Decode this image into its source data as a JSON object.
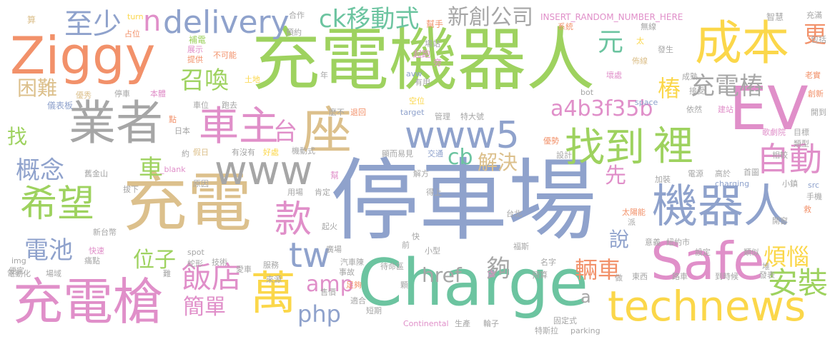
{
  "palette": {
    "green": "#9ed25f",
    "blue": "#8fa2cc",
    "orange": "#f2916a",
    "pink": "#e08fc9",
    "tan": "#dcc08c",
    "yellow": "#fbd74a",
    "teal": "#6cc4a0",
    "gray": "#a6a6a6"
  },
  "words": {
    "chongdian_jiqiren": "充電機器人",
    "tingchechang": "停車場",
    "chongdian": "充電",
    "charge": "Charge",
    "ziggy": "Ziggy",
    "yezhe": "業者",
    "chengben": "成本",
    "ev": "EV",
    "safe": "Safe",
    "technews": "technews",
    "chongdianqiang": "充電槍",
    "jiqiren": "機器人",
    "wan": "萬",
    "zuo": "座",
    "www5": "www5",
    "www": "www",
    "chezhu": "車主",
    "zhaodao": "找到",
    "li": "裡",
    "zidong": "自動",
    "xiwang": "希望",
    "kuan": "款",
    "tw": "tw",
    "fandian": "飯店",
    "anzhuang": "安裝",
    "delivery": "delivery",
    "n": "n",
    "zhishao": "至少",
    "ck_yidongshi": "ck移動式",
    "xinchuang_gongsi": "新創公司",
    "yuan": "元",
    "zhuang": "樁",
    "geng": "更",
    "zhaohuan": "召喚",
    "chongdianzhuang": "充電樁",
    "kunnan": "困難",
    "tai": "台",
    "a4b3f35b": "a4b3f35b",
    "zhao": "找",
    "gainian": "概念",
    "che": "車",
    "cb": "cb",
    "jiejue": "解決",
    "xian": "先",
    "dianchi": "電池",
    "shuo": "說",
    "weizi": "位子",
    "liangche": "輛車",
    "gou": "夠",
    "href": "href",
    "fannao": "煩惱",
    "amp": "amp",
    "a": "a",
    "php": "php",
    "jiandan": "簡單",
    "turn": "turn",
    "zhanwei": "占位",
    "suan": "算",
    "hezuo": "合作",
    "bangshou": "幫手",
    "budian": "補電",
    "yuyue": "預約",
    "insert": "INSERT_RANDOM_NUMBER_HERE",
    "changzhan": "場站",
    "xitong": "系統",
    "wuxian": "無線",
    "zhihui": "智慧",
    "chongman": "充滿",
    "baokuo": "包括",
    "zhanshi": "展示",
    "tigong": "提供",
    "bukeneng": "不可能",
    "qipao": "起跑",
    "pang": "旁",
    "bujing": "佈線",
    "fasheng": "發生",
    "taida": "太",
    "youxiu": "優秀",
    "tingche": "停車",
    "benti": "本體",
    "avw": "avw",
    "youyong": "有用",
    "huaichu": "壞處",
    "chengshu": "成熟",
    "jieshou": "接受",
    "laoshi": "老實",
    "chuangxin": "創新",
    "tudi": "土地",
    "nian": "年",
    "yibiaoban": "儀表板",
    "mafan": "麻煩",
    "chewei": "車位",
    "paoqu": "跑去",
    "bot": "bot",
    "space": "space",
    "kongwei": "空位",
    "mo_bu": "麼不",
    "tuihui": "退回",
    "guanli": "管理",
    "tedahao": "特大號",
    "target": "target",
    "yiran": "依然",
    "jianzhan": "建站",
    "kaidao": "開到",
    "dian": "點",
    "riben": "日本",
    "jiari": "假日",
    "youmeiyou": "有沒有",
    "haochu": "好處",
    "jidongshi": "機動式",
    "xianeryijian": "顯而易見",
    "jiaotong": "交通",
    "youshi": "優勢",
    "gejuyuan": "歌劇院",
    "mubiao": "目標",
    "yue": "約",
    "blank": "_blank",
    "sheji": "設計",
    "leixing": "類型",
    "xiangjiao": "相較",
    "jiujinshan": "舊金山",
    "bang": "幫",
    "jiefang": "解方",
    "dianyuan": "電源",
    "gaoyu": "高於",
    "shouye": "首圖",
    "yuanyin": "原因",
    "jiazhuang": "加裝",
    "charging": "charging",
    "xiaozhen": "小鎮",
    "bachu": "拔下",
    "yongchang": "用場",
    "kending": "肯定",
    "dedao": "得上",
    "src": "src",
    "taiyangneng": "太陽能",
    "shouji": "手機",
    "jiu": "救",
    "xintaibi": "新台幣",
    "taibei": "台北",
    "pai": "派",
    "qihuo": "起火",
    "kai": "快",
    "kaichuang": "開窗",
    "kuaisu": "快速",
    "guangchang": "廣場",
    "qian": "前",
    "xiaoxing": "小型",
    "fusi": "福斯",
    "yiyi": "意義",
    "niuyueshi": "紐約市",
    "tongdian": "痛點",
    "spot": "spot",
    "jishu": "技術",
    "qiche": "汽車",
    "shigu": "事故",
    "lei": "陳",
    "chu": "處",
    "mingzi": "名字",
    "sheding": "設定",
    "leisi": "類似",
    "bianyi": "便宜",
    "shexing": "蛇形",
    "aiche": "愛車",
    "fuwu": "服務",
    "daichuqu": "待命區",
    "yusuan": "預算",
    "dui": "堆",
    "diandonghua": "電動化",
    "changyu": "場域",
    "nan": "難",
    "laiyuan": "來源",
    "zugou": "足夠",
    "ke": "顆",
    "zuo2": "做",
    "dongxi": "東西",
    "luche": "路車",
    "daoshihou": "到時候",
    "fabiao": "發表",
    "img": "img",
    "shoujia": "售價",
    "shihe": "適合",
    "duanqi": "短期",
    "continental": "Continental",
    "shengchan": "生產",
    "lunzi": "輪子",
    "tesila": "特斯拉",
    "parking": "parking",
    "gudingshi": "固定式"
  }
}
